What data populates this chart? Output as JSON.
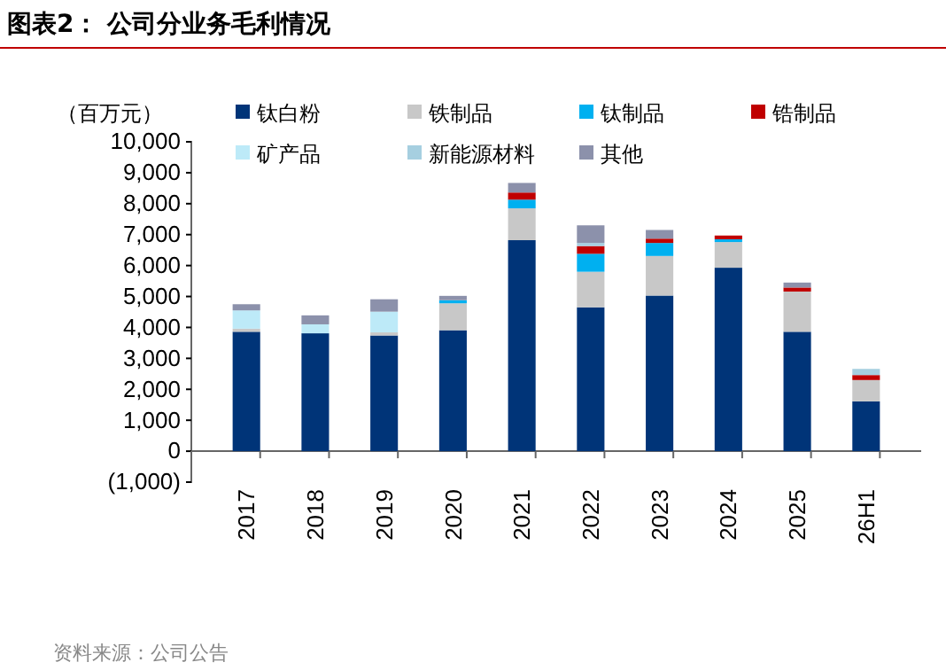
{
  "chart_data": {
    "type": "bar",
    "stacked": true,
    "title": "图表2：  公司分业务毛利情况",
    "ylabel": "（百万元）",
    "annotations": [
      "资料来源：公司公告"
    ],
    "categories": [
      "2017",
      "2018",
      "2019",
      "2020",
      "2021",
      "2022",
      "2023",
      "2024",
      "2025",
      "26H1"
    ],
    "series": [
      {
        "name": "钛白粉",
        "color": "#003478",
        "values": [
          3860,
          3810,
          3740,
          3910,
          6820,
          4650,
          5030,
          5930,
          3860,
          1610
        ]
      },
      {
        "name": "铁制品",
        "color": "#c8c8c8",
        "values": [
          100,
          null,
          100,
          870,
          1030,
          1150,
          1280,
          830,
          1300,
          690
        ]
      },
      {
        "name": "钛制品",
        "color": "#00b0f0",
        "values": [
          null,
          null,
          null,
          100,
          280,
          580,
          420,
          90,
          null,
          null
        ]
      },
      {
        "name": "锆制品",
        "color": "#c00000",
        "values": [
          null,
          null,
          null,
          null,
          230,
          250,
          140,
          120,
          130,
          160
        ]
      },
      {
        "name": "矿产品",
        "color": "#bdeaf8",
        "values": [
          590,
          290,
          670,
          null,
          null,
          null,
          null,
          null,
          null,
          null
        ]
      },
      {
        "name": "新能源材料",
        "color": "#a6cfe0",
        "values": [
          null,
          null,
          null,
          null,
          null,
          100,
          null,
          null,
          null,
          200
        ]
      },
      {
        "name": "其他",
        "color": "#8c91ab",
        "values": [
          200,
          290,
          400,
          140,
          310,
          570,
          280,
          null,
          160,
          null
        ]
      }
    ],
    "ylim": [
      -1000,
      10000
    ],
    "yticks": [
      {
        "value": -1000,
        "label": "(1,000)"
      },
      {
        "value": 0,
        "label": "0"
      },
      {
        "value": 1000,
        "label": "1,000"
      },
      {
        "value": 2000,
        "label": "2,000"
      },
      {
        "value": 3000,
        "label": "3,000"
      },
      {
        "value": 4000,
        "label": "4,000"
      },
      {
        "value": 5000,
        "label": "5,000"
      },
      {
        "value": 6000,
        "label": "6,000"
      },
      {
        "value": 7000,
        "label": "7,000"
      },
      {
        "value": 8000,
        "label": "8,000"
      },
      {
        "value": 9000,
        "label": "9,000"
      },
      {
        "value": 10000,
        "label": "10,000"
      }
    ],
    "legend": "top"
  }
}
